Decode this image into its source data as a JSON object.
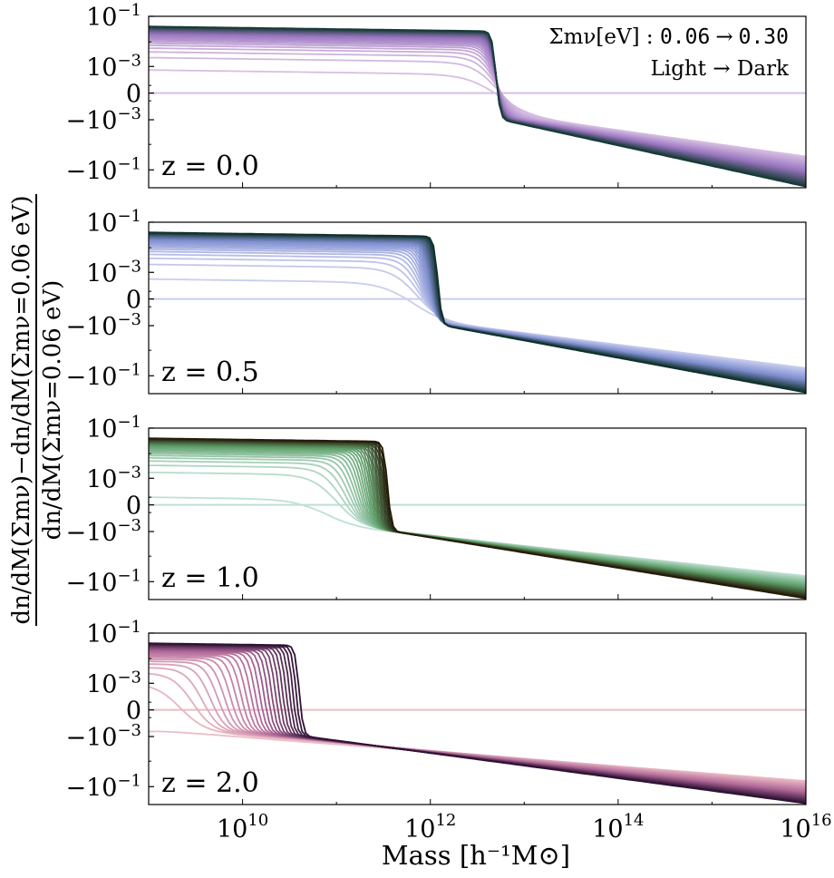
{
  "chart_data": {
    "type": "line",
    "xlabel": "Mass [h⁻¹M⊙]",
    "ylabel_numerator": "dn/dM(Σmν)−dn/dM(Σmν=0.06 eV)",
    "ylabel_denominator": "dn/dM(Σmν=0.06 eV)",
    "x_scale": "log",
    "xlim": [
      1000000000.0,
      1e+16
    ],
    "x_ticks": [
      {
        "value": 10000000000.0,
        "base": "10",
        "exp": "10"
      },
      {
        "value": 1000000000000.0,
        "base": "10",
        "exp": "12"
      },
      {
        "value": 100000000000000.0,
        "base": "10",
        "exp": "14"
      },
      {
        "value": 1e+16,
        "base": "10",
        "exp": "16"
      }
    ],
    "y_scale": "symlog",
    "y_linthresh": 0.0001,
    "ylim": [
      -0.5,
      0.1
    ],
    "y_ticks": [
      {
        "value": 0.1,
        "base": "10",
        "exp": "−1"
      },
      {
        "value": 0.001,
        "base": "10",
        "exp": "−3"
      },
      {
        "value": 0,
        "base": "0",
        "exp": ""
      },
      {
        "value": -0.001,
        "base": "−10",
        "exp": "−3"
      },
      {
        "value": -0.1,
        "base": "−10",
        "exp": "−1"
      }
    ],
    "legend": {
      "line1_prefix": "Σmν[eV] : ",
      "line1_from": "0.06",
      "arrow": "→",
      "line1_to": "0.30",
      "line2": "Light → Dark"
    },
    "n_curves": 25,
    "sum_mnu_range_eV": [
      0.06,
      0.3
    ],
    "panels": [
      {
        "label": "z = 0.0",
        "colormap": "purple",
        "color_light": "#d7bfe2",
        "color_mid": "#9a76c0",
        "color_dark": "#163a36",
        "crossing_mass_light": 5000000000000.0,
        "crossing_mass_dark": 5000000000000.0,
        "low_mass_level_light": 0.0007,
        "low_mass_level_dark": 0.04,
        "high_mass_end_light": -0.03,
        "high_mass_end_dark": -0.45
      },
      {
        "label": "z = 0.5",
        "colormap": "blue",
        "color_light": "#c9cdef",
        "color_mid": "#7f8fd0",
        "color_dark": "#10302a",
        "crossing_mass_light": 600000000000.0,
        "crossing_mass_dark": 1200000000000.0,
        "low_mass_level_light": 0.0005,
        "low_mass_level_dark": 0.04,
        "high_mass_end_light": -0.05,
        "high_mass_end_dark": -0.45
      },
      {
        "label": "z = 1.0",
        "colormap": "green",
        "color_light": "#bfe0d4",
        "color_mid": "#5fa06a",
        "color_dark": "#251a08",
        "crossing_mass_light": 70000000000.0,
        "crossing_mass_dark": 350000000000.0,
        "low_mass_level_light": 0.0001,
        "low_mass_level_dark": 0.04,
        "high_mass_end_light": -0.06,
        "high_mass_end_dark": -0.45
      },
      {
        "label": "z = 2.0",
        "colormap": "pink",
        "color_light": "#ecbcc4",
        "color_mid": "#b26a9a",
        "color_dark": "#2d1234",
        "crossing_mass_light": 1000000000.0,
        "crossing_mass_dark": 40000000000.0,
        "low_mass_level_light": -0.0007,
        "low_mass_level_dark": 0.04,
        "high_mass_end_light": -0.06,
        "high_mass_end_dark": -0.45
      }
    ]
  }
}
